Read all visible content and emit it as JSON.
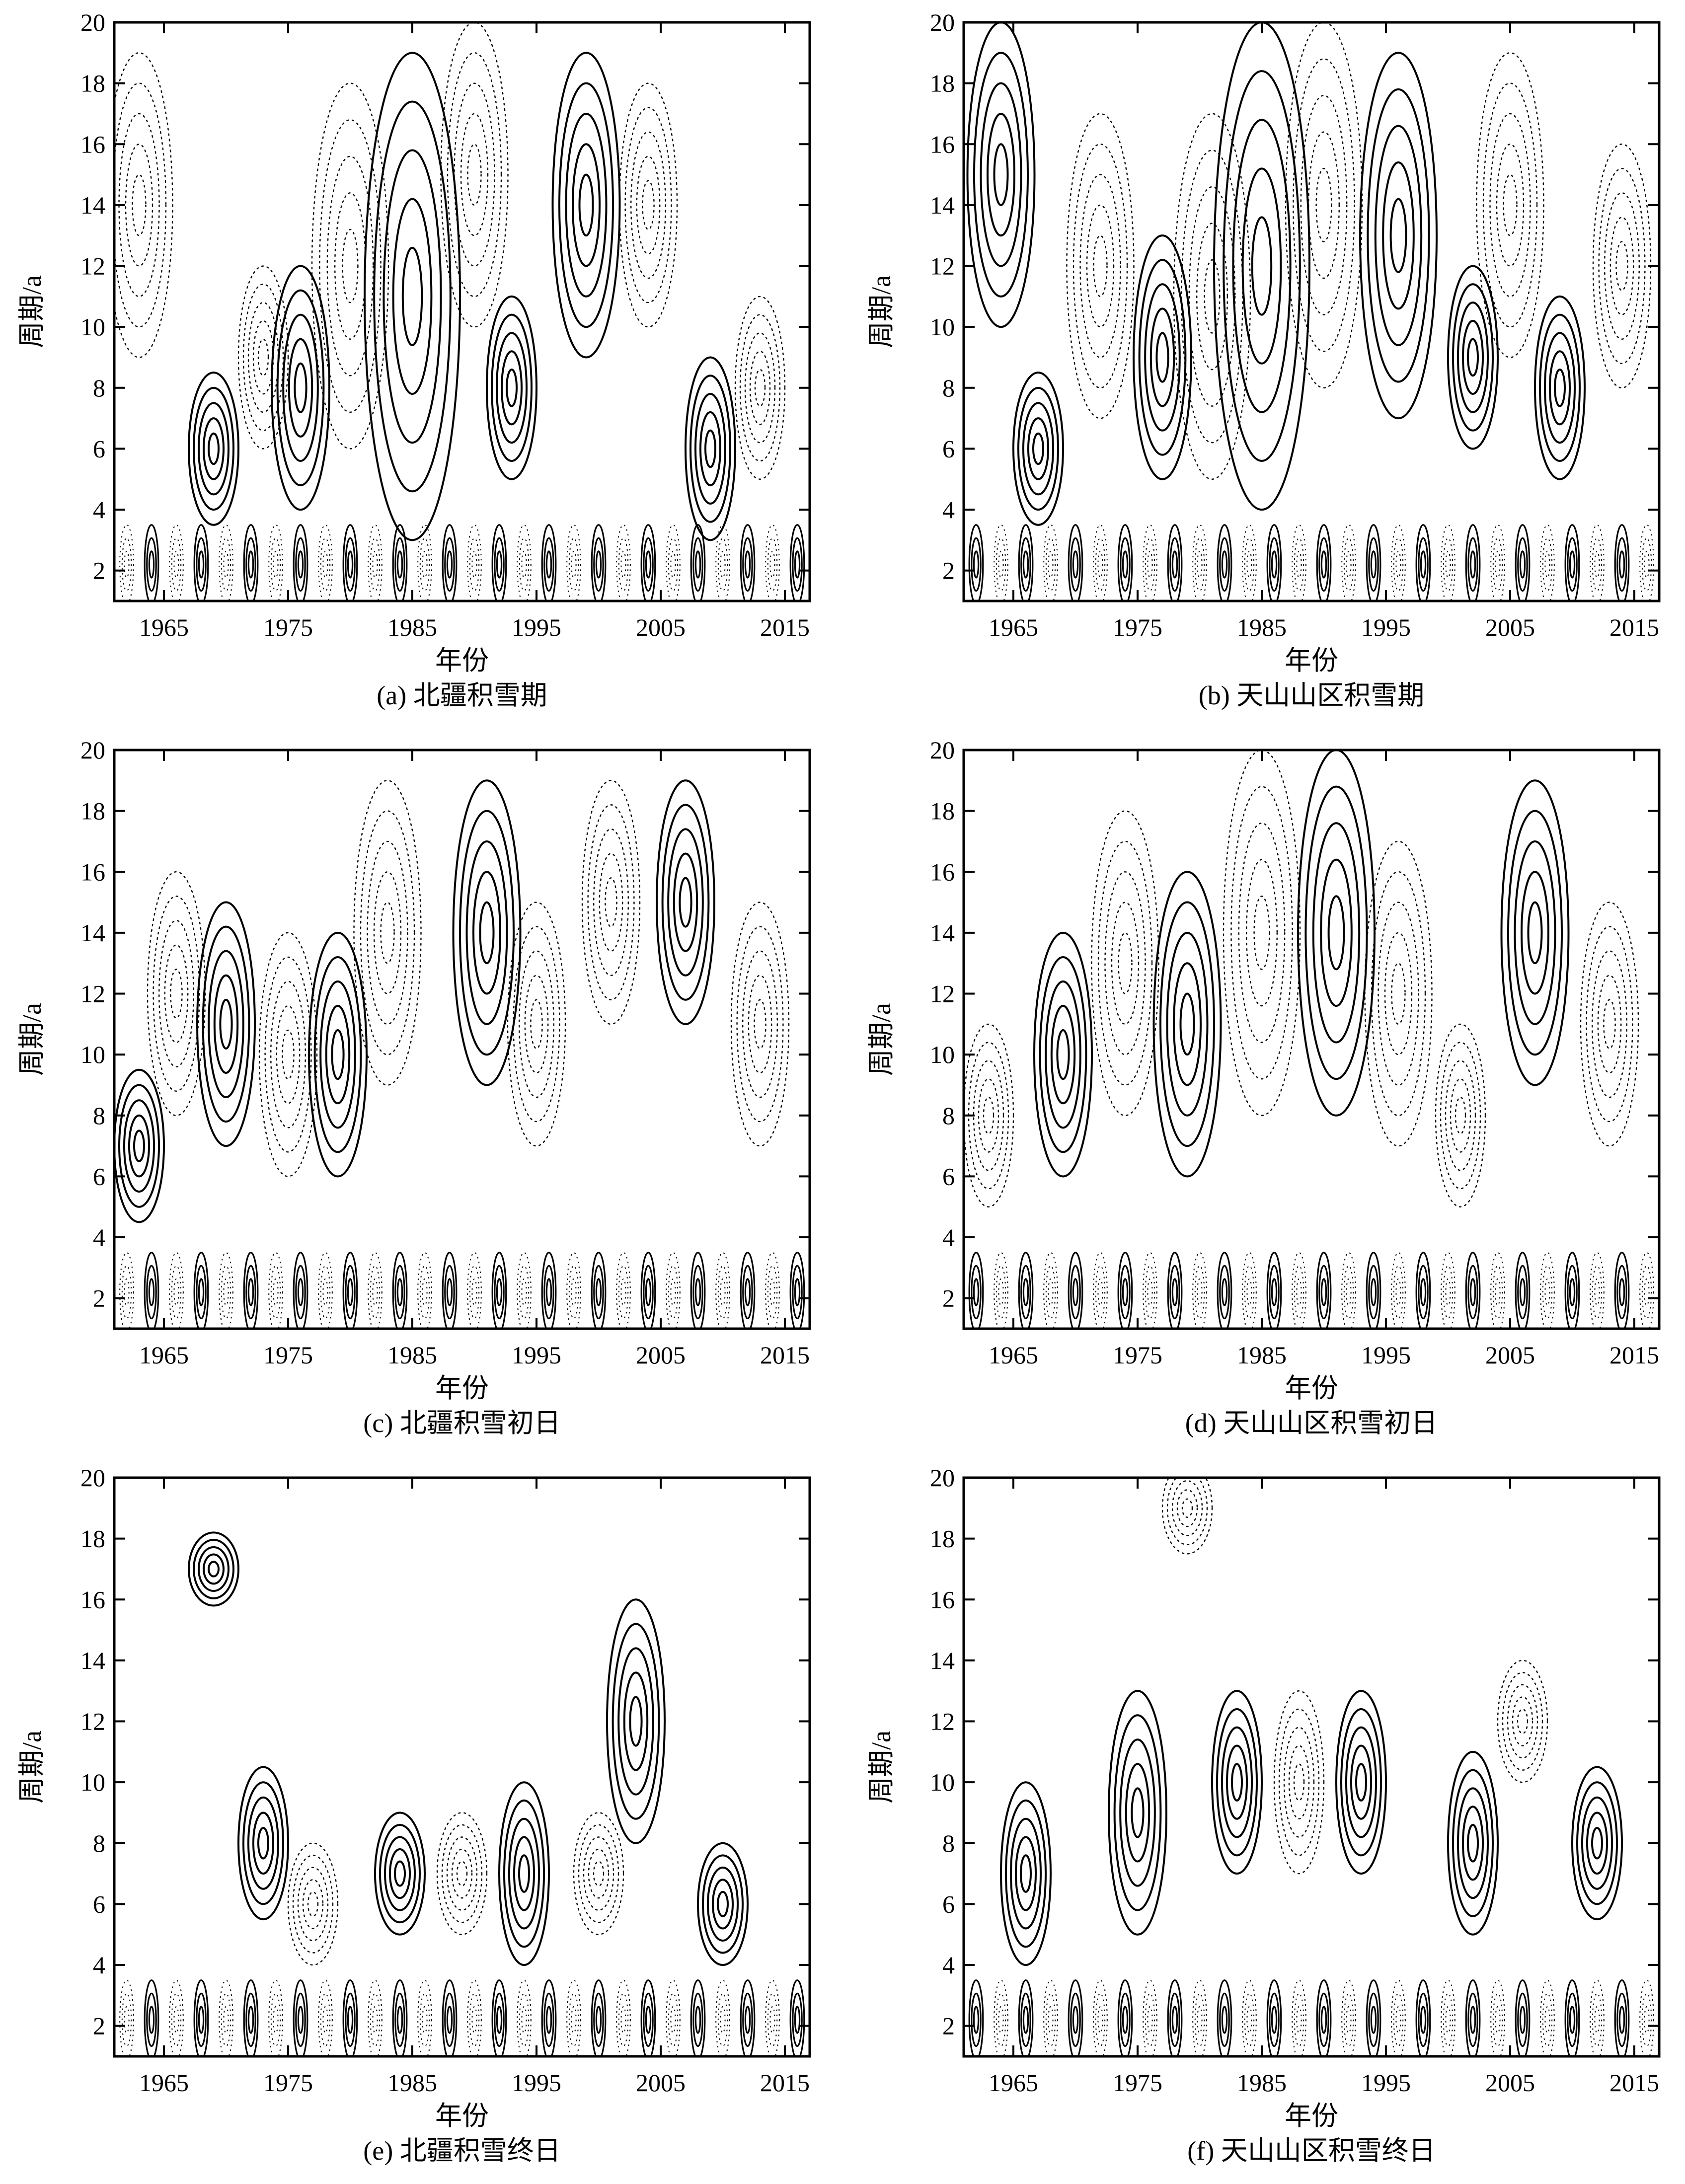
{
  "figure": {
    "panels": [
      {
        "id": "a",
        "caption": "(a) 北疆积雪期",
        "chart_data": {
          "type": "contour",
          "title": "",
          "xlabel": "年份",
          "ylabel": "周期/a",
          "xlim": [
            1961,
            2017
          ],
          "ylim": [
            1,
            20
          ],
          "xticks": [
            1965,
            1975,
            1985,
            1995,
            2005,
            2015
          ],
          "yticks": [
            2,
            4,
            6,
            8,
            10,
            12,
            14,
            16,
            18,
            20
          ],
          "centers": [
            {
              "x": 1963,
              "y": 14,
              "sign": "neg",
              "ry": 5
            },
            {
              "x": 1969,
              "y": 6,
              "sign": "pos",
              "ry": 2.5
            },
            {
              "x": 1973,
              "y": 9,
              "sign": "neg",
              "ry": 3
            },
            {
              "x": 1976,
              "y": 8,
              "sign": "pos",
              "ry": 4
            },
            {
              "x": 1980,
              "y": 12,
              "sign": "neg",
              "ry": 6
            },
            {
              "x": 1985,
              "y": 11,
              "sign": "pos",
              "ry": 8
            },
            {
              "x": 1990,
              "y": 15,
              "sign": "neg",
              "ry": 5
            },
            {
              "x": 1993,
              "y": 8,
              "sign": "pos",
              "ry": 3
            },
            {
              "x": 1999,
              "y": 14,
              "sign": "pos",
              "ry": 5
            },
            {
              "x": 2004,
              "y": 14,
              "sign": "neg",
              "ry": 4
            },
            {
              "x": 2009,
              "y": 6,
              "sign": "pos",
              "ry": 3
            },
            {
              "x": 2013,
              "y": 8,
              "sign": "neg",
              "ry": 3
            }
          ]
        }
      },
      {
        "id": "b",
        "caption": "(b) 天山山区积雪期",
        "chart_data": {
          "type": "contour",
          "title": "",
          "xlabel": "年份",
          "ylabel": "周期/a",
          "xlim": [
            1961,
            2017
          ],
          "ylim": [
            1,
            20
          ],
          "xticks": [
            1965,
            1975,
            1985,
            1995,
            2005,
            2015
          ],
          "yticks": [
            2,
            4,
            6,
            8,
            10,
            12,
            14,
            16,
            18,
            20
          ],
          "centers": [
            {
              "x": 1964,
              "y": 15,
              "sign": "pos",
              "ry": 5
            },
            {
              "x": 1967,
              "y": 6,
              "sign": "pos",
              "ry": 2.5
            },
            {
              "x": 1972,
              "y": 12,
              "sign": "neg",
              "ry": 5
            },
            {
              "x": 1977,
              "y": 9,
              "sign": "pos",
              "ry": 4
            },
            {
              "x": 1981,
              "y": 11,
              "sign": "neg",
              "ry": 6
            },
            {
              "x": 1985,
              "y": 12,
              "sign": "pos",
              "ry": 8
            },
            {
              "x": 1990,
              "y": 14,
              "sign": "neg",
              "ry": 6
            },
            {
              "x": 1996,
              "y": 13,
              "sign": "pos",
              "ry": 6
            },
            {
              "x": 2002,
              "y": 9,
              "sign": "pos",
              "ry": 3
            },
            {
              "x": 2005,
              "y": 14,
              "sign": "neg",
              "ry": 5
            },
            {
              "x": 2009,
              "y": 8,
              "sign": "pos",
              "ry": 3
            },
            {
              "x": 2014,
              "y": 12,
              "sign": "neg",
              "ry": 4
            }
          ]
        }
      },
      {
        "id": "c",
        "caption": "(c) 北疆积雪初日",
        "chart_data": {
          "type": "contour",
          "title": "",
          "xlabel": "年份",
          "ylabel": "周期/a",
          "xlim": [
            1961,
            2017
          ],
          "ylim": [
            1,
            20
          ],
          "xticks": [
            1965,
            1975,
            1985,
            1995,
            2005,
            2015
          ],
          "yticks": [
            2,
            4,
            6,
            8,
            10,
            12,
            14,
            16,
            18,
            20
          ],
          "centers": [
            {
              "x": 1963,
              "y": 7,
              "sign": "pos",
              "ry": 2.5
            },
            {
              "x": 1966,
              "y": 12,
              "sign": "neg",
              "ry": 4
            },
            {
              "x": 1970,
              "y": 11,
              "sign": "pos",
              "ry": 4
            },
            {
              "x": 1975,
              "y": 10,
              "sign": "neg",
              "ry": 4
            },
            {
              "x": 1979,
              "y": 10,
              "sign": "pos",
              "ry": 4
            },
            {
              "x": 1983,
              "y": 14,
              "sign": "neg",
              "ry": 5
            },
            {
              "x": 1991,
              "y": 14,
              "sign": "pos",
              "ry": 5
            },
            {
              "x": 1995,
              "y": 11,
              "sign": "neg",
              "ry": 4
            },
            {
              "x": 2001,
              "y": 15,
              "sign": "neg",
              "ry": 4
            },
            {
              "x": 2007,
              "y": 15,
              "sign": "pos",
              "ry": 4
            },
            {
              "x": 2013,
              "y": 11,
              "sign": "neg",
              "ry": 4
            }
          ]
        }
      },
      {
        "id": "d",
        "caption": "(d) 天山山区积雪初日",
        "chart_data": {
          "type": "contour",
          "title": "",
          "xlabel": "年份",
          "ylabel": "周期/a",
          "xlim": [
            1961,
            2017
          ],
          "ylim": [
            1,
            20
          ],
          "xticks": [
            1965,
            1975,
            1985,
            1995,
            2005,
            2015
          ],
          "yticks": [
            2,
            4,
            6,
            8,
            10,
            12,
            14,
            16,
            18,
            20
          ],
          "centers": [
            {
              "x": 1963,
              "y": 8,
              "sign": "neg",
              "ry": 3
            },
            {
              "x": 1969,
              "y": 10,
              "sign": "pos",
              "ry": 4
            },
            {
              "x": 1974,
              "y": 13,
              "sign": "neg",
              "ry": 5
            },
            {
              "x": 1979,
              "y": 11,
              "sign": "pos",
              "ry": 5
            },
            {
              "x": 1985,
              "y": 14,
              "sign": "neg",
              "ry": 6
            },
            {
              "x": 1991,
              "y": 14,
              "sign": "pos",
              "ry": 6
            },
            {
              "x": 1996,
              "y": 12,
              "sign": "neg",
              "ry": 5
            },
            {
              "x": 2001,
              "y": 8,
              "sign": "neg",
              "ry": 3
            },
            {
              "x": 2007,
              "y": 14,
              "sign": "pos",
              "ry": 5
            },
            {
              "x": 2013,
              "y": 11,
              "sign": "neg",
              "ry": 4
            }
          ]
        }
      },
      {
        "id": "e",
        "caption": "(e) 北疆积雪终日",
        "chart_data": {
          "type": "contour",
          "title": "",
          "xlabel": "年份",
          "ylabel": "周期/a",
          "xlim": [
            1961,
            2017
          ],
          "ylim": [
            1,
            20
          ],
          "xticks": [
            1965,
            1975,
            1985,
            1995,
            2005,
            2015
          ],
          "yticks": [
            2,
            4,
            6,
            8,
            10,
            12,
            14,
            16,
            18,
            20
          ],
          "centers": [
            {
              "x": 1969,
              "y": 17,
              "sign": "pos",
              "ry": 1.2
            },
            {
              "x": 1973,
              "y": 8,
              "sign": "pos",
              "ry": 2.5
            },
            {
              "x": 1977,
              "y": 6,
              "sign": "neg",
              "ry": 2
            },
            {
              "x": 1984,
              "y": 7,
              "sign": "pos",
              "ry": 2
            },
            {
              "x": 1989,
              "y": 7,
              "sign": "neg",
              "ry": 2
            },
            {
              "x": 1994,
              "y": 7,
              "sign": "pos",
              "ry": 3
            },
            {
              "x": 2000,
              "y": 7,
              "sign": "neg",
              "ry": 2
            },
            {
              "x": 2003,
              "y": 12,
              "sign": "pos",
              "ry": 4
            },
            {
              "x": 2010,
              "y": 6,
              "sign": "pos",
              "ry": 2
            }
          ]
        }
      },
      {
        "id": "f",
        "caption": "(f) 天山山区积雪终日",
        "chart_data": {
          "type": "contour",
          "title": "",
          "xlabel": "年份",
          "ylabel": "周期/a",
          "xlim": [
            1961,
            2017
          ],
          "ylim": [
            1,
            20
          ],
          "xticks": [
            1965,
            1975,
            1985,
            1995,
            2005,
            2015
          ],
          "yticks": [
            2,
            4,
            6,
            8,
            10,
            12,
            14,
            16,
            18,
            20
          ],
          "centers": [
            {
              "x": 1966,
              "y": 7,
              "sign": "pos",
              "ry": 3
            },
            {
              "x": 1975,
              "y": 9,
              "sign": "pos",
              "ry": 4
            },
            {
              "x": 1979,
              "y": 19,
              "sign": "neg",
              "ry": 1.5
            },
            {
              "x": 1983,
              "y": 10,
              "sign": "pos",
              "ry": 3
            },
            {
              "x": 1988,
              "y": 10,
              "sign": "neg",
              "ry": 3
            },
            {
              "x": 1993,
              "y": 10,
              "sign": "pos",
              "ry": 3
            },
            {
              "x": 2002,
              "y": 8,
              "sign": "pos",
              "ry": 3
            },
            {
              "x": 2006,
              "y": 12,
              "sign": "neg",
              "ry": 2
            },
            {
              "x": 2012,
              "y": 8,
              "sign": "pos",
              "ry": 2.5
            }
          ]
        }
      }
    ]
  }
}
